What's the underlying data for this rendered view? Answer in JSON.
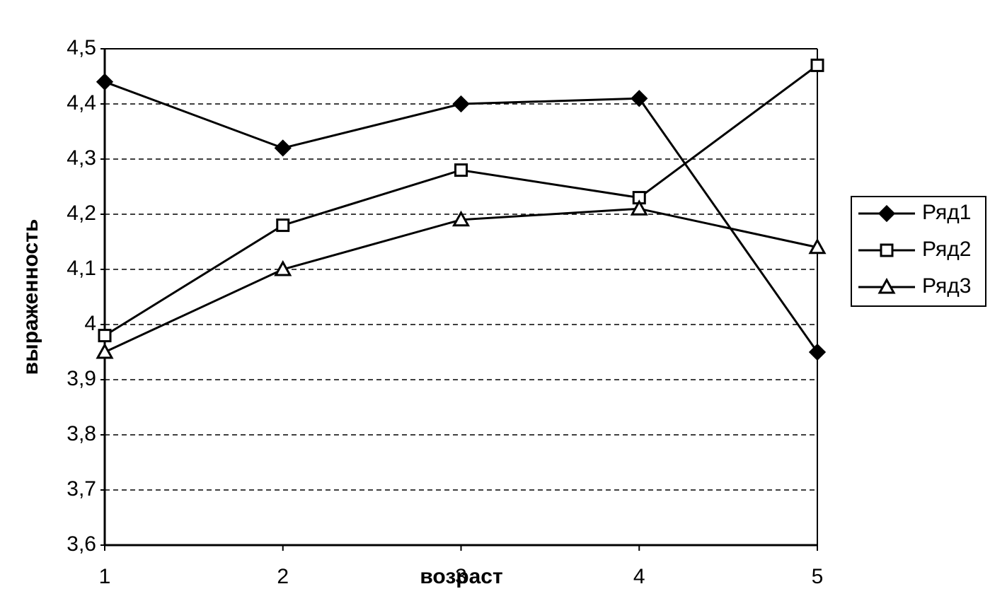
{
  "chart_data": {
    "type": "line",
    "x_label": "возраст",
    "y_label": "выраженность",
    "categories": [
      "1",
      "2",
      "3",
      "4",
      "5"
    ],
    "series": [
      {
        "name": "Ряд1",
        "color": "#000000",
        "marker": "diamond",
        "values": [
          4.44,
          4.32,
          4.4,
          4.41,
          3.95
        ]
      },
      {
        "name": "Ряд2",
        "color": "#000000",
        "marker": "square",
        "values": [
          3.98,
          4.18,
          4.28,
          4.23,
          4.47
        ]
      },
      {
        "name": "Ряд3",
        "color": "#000000",
        "marker": "triangle",
        "values": [
          3.95,
          4.1,
          4.19,
          4.21,
          4.14
        ]
      }
    ],
    "ylim": [
      3.6,
      4.5
    ],
    "yticks": [
      {
        "value": 3.6,
        "label": "3,6"
      },
      {
        "value": 3.7,
        "label": "3,7"
      },
      {
        "value": 3.8,
        "label": "3,8"
      },
      {
        "value": 3.9,
        "label": "3,9"
      },
      4,
      {
        "value": 4.1,
        "label": "4,1"
      },
      {
        "value": 4.2,
        "label": "4,2"
      },
      {
        "value": 4.3,
        "label": "4,3"
      },
      {
        "value": 4.4,
        "label": "4,4"
      },
      {
        "value": 4.5,
        "label": "4,5"
      }
    ],
    "grid": true,
    "legend": "right"
  }
}
